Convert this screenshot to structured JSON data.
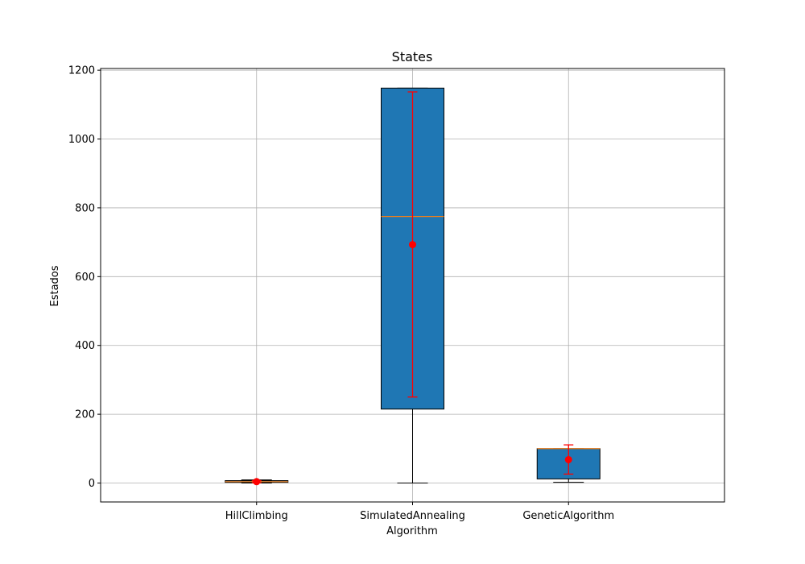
{
  "chart_data": {
    "type": "boxplot",
    "title": "States",
    "xlabel": "Algorithm",
    "ylabel": "Estados",
    "ylim": [
      -55,
      1205
    ],
    "yticks": [
      0,
      200,
      400,
      600,
      800,
      1000,
      1200
    ],
    "grid": true,
    "box_color": "#1f77b4",
    "median_color": "#ff7f0e",
    "errorbar_color": "#ff0000",
    "categories": [
      "HillClimbing",
      "SimulatedAnnealing",
      "GeneticAlgorithm"
    ],
    "boxes": [
      {
        "name": "HillClimbing",
        "whisker_low": 0,
        "q1": 2,
        "median": 4,
        "q3": 7,
        "whisker_high": 9,
        "mean": 4,
        "err_low": 1,
        "err_high": 7
      },
      {
        "name": "SimulatedAnnealing",
        "whisker_low": 0,
        "q1": 215,
        "median": 775,
        "q3": 1148,
        "whisker_high": 1148,
        "mean": 693,
        "err_low": 250,
        "err_high": 1137
      },
      {
        "name": "GeneticAlgorithm",
        "whisker_low": 2,
        "q1": 12,
        "median": 100,
        "q3": 100,
        "whisker_high": 100,
        "mean": 68,
        "err_low": 26,
        "err_high": 111
      }
    ]
  }
}
